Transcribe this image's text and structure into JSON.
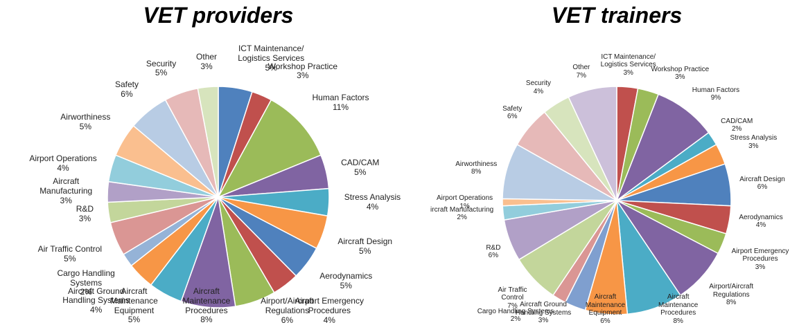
{
  "chart_data": [
    {
      "type": "pie",
      "title": "VET providers",
      "categories": [
        "ICT Maintenance/\nLogistics Services",
        "Workshop Practice",
        "Human Factors",
        "CAD/CAM",
        "Stress Analysis",
        "Aircraft Design",
        "Aerodynamics",
        "Airport Emergency\nProcedures",
        "Airport/Aircraft\nRegulations",
        "Aircraft\nMaintenance\nProcedures",
        "Aircraft\nMaintenance\nEquipment",
        "Aircraft Ground\nHandling Systems",
        "Cargo Handling\nSystems",
        "Air Traffic Control",
        "R&D",
        "Aircraft\nManufacturing",
        "Airport Operations",
        "Airworthiness",
        "Safety",
        "Security",
        "Other"
      ],
      "values": [
        5,
        3,
        11,
        5,
        4,
        5,
        5,
        4,
        6,
        8,
        5,
        4,
        2,
        5,
        3,
        3,
        4,
        5,
        6,
        5,
        3
      ],
      "value_labels": [
        "5%",
        "3%",
        "11%",
        "5%",
        "4%",
        "5%",
        "5%",
        "4%",
        "6%",
        "8%",
        "5%",
        "4%",
        "2%",
        "5%",
        "3%",
        "3%",
        "4%",
        "5%",
        "6%",
        "5%",
        "3%"
      ],
      "colors": [
        "#4f81bd",
        "#c0504d",
        "#9bbb59",
        "#8064a2",
        "#4bacc6",
        "#f79646",
        "#4f81bd",
        "#c0504d",
        "#9bbb59",
        "#8064a2",
        "#4bacc6",
        "#f79646",
        "#95b3d7",
        "#da9694",
        "#c3d69b",
        "#b1a0c7",
        "#92cddc",
        "#fabf8f",
        "#b8cce4",
        "#e6b9b8",
        "#d7e4bd"
      ]
    },
    {
      "type": "pie",
      "title": "VET trainers",
      "categories": [
        "ICT Maintenance/\nLogistics Services",
        "Workshop Practice",
        "Human Factors",
        "CAD/CAM",
        "Stress Analysis",
        "Aircraft Design",
        "Aerodynamics",
        "Airport Emergency\nProcedures",
        "Airport/Aircraft\nRegulations",
        "Aircraft\nMaintenance\nProcedures",
        "Aircraft\nMaintenance\nEquipment",
        "Aircraft Ground\nHandling Systems",
        "Cargo Handling Systems",
        "Air Traffic\nControl",
        "R&D",
        "ircraft Manufacturing",
        "Airport Operations",
        "Airworthiness",
        "Safety",
        "Security",
        "Other"
      ],
      "values": [
        3,
        3,
        9,
        2,
        3,
        6,
        4,
        3,
        8,
        8,
        6,
        3,
        2,
        7,
        6,
        2,
        1,
        8,
        6,
        4,
        7
      ],
      "value_labels": [
        "3%",
        "3%",
        "9%",
        "2%",
        "3%",
        "6%",
        "4%",
        "3%",
        "8%",
        "8%",
        "6%",
        "3%",
        "2%",
        "7%",
        "6%",
        "2%",
        "1%",
        "8%",
        "6%",
        "4%",
        "7%"
      ],
      "colors": [
        "#c0504d",
        "#9bbb59",
        "#8064a2",
        "#4bacc6",
        "#f79646",
        "#4f81bd",
        "#c0504d",
        "#9bbb59",
        "#8064a2",
        "#4bacc6",
        "#f79646",
        "#7f9fcf",
        "#da9694",
        "#c3d69b",
        "#b1a0c7",
        "#92cddc",
        "#fabf8f",
        "#b8cce4",
        "#e6b9b8",
        "#d7e4bd",
        "#ccc0da"
      ]
    }
  ]
}
